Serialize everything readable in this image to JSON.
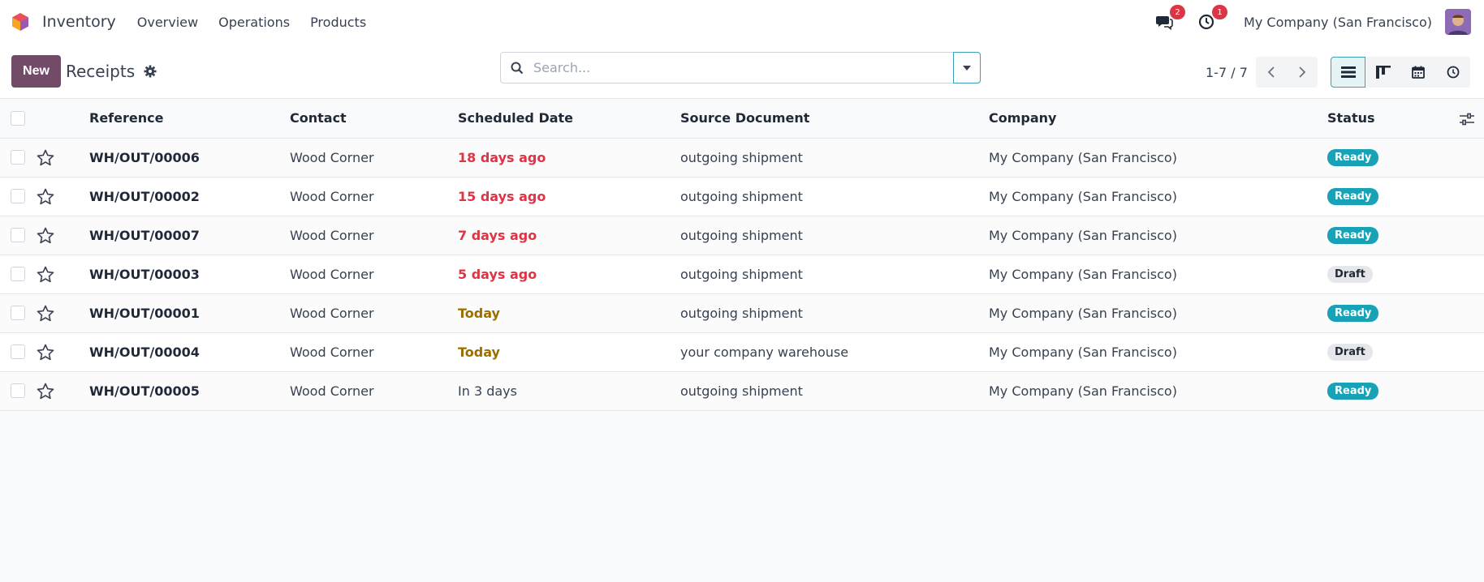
{
  "navbar": {
    "app_name": "Inventory",
    "menu": [
      "Overview",
      "Operations",
      "Products"
    ],
    "messages_count": "2",
    "activities_count": "1",
    "company": "My Company (San Francisco)"
  },
  "control_panel": {
    "new_label": "New",
    "title": "Receipts",
    "search_placeholder": "Search...",
    "pager": "1-7 / 7"
  },
  "table": {
    "headers": {
      "reference": "Reference",
      "contact": "Contact",
      "scheduled_date": "Scheduled Date",
      "source_document": "Source Document",
      "company": "Company",
      "status": "Status"
    },
    "rows": [
      {
        "reference": "WH/OUT/00006",
        "contact": "Wood Corner",
        "date": "18 days ago",
        "date_state": "late",
        "source": "outgoing shipment",
        "company": "My Company (San Francisco)",
        "status": "Ready"
      },
      {
        "reference": "WH/OUT/00002",
        "contact": "Wood Corner",
        "date": "15 days ago",
        "date_state": "late",
        "source": "outgoing shipment",
        "company": "My Company (San Francisco)",
        "status": "Ready"
      },
      {
        "reference": "WH/OUT/00007",
        "contact": "Wood Corner",
        "date": "7 days ago",
        "date_state": "late",
        "source": "outgoing shipment",
        "company": "My Company (San Francisco)",
        "status": "Ready"
      },
      {
        "reference": "WH/OUT/00003",
        "contact": "Wood Corner",
        "date": "5 days ago",
        "date_state": "late",
        "source": "outgoing shipment",
        "company": "My Company (San Francisco)",
        "status": "Draft"
      },
      {
        "reference": "WH/OUT/00001",
        "contact": "Wood Corner",
        "date": "Today",
        "date_state": "today",
        "source": "outgoing shipment",
        "company": "My Company (San Francisco)",
        "status": "Ready"
      },
      {
        "reference": "WH/OUT/00004",
        "contact": "Wood Corner",
        "date": "Today",
        "date_state": "today",
        "source": "your company warehouse",
        "company": "My Company (San Francisco)",
        "status": "Draft"
      },
      {
        "reference": "WH/OUT/00005",
        "contact": "Wood Corner",
        "date": "In 3 days",
        "date_state": "future",
        "source": "outgoing shipment",
        "company": "My Company (San Francisco)",
        "status": "Ready"
      }
    ]
  },
  "colors": {
    "brand": "#714b67",
    "accent": "#17a2b8",
    "late": "#dc3545",
    "today": "#9a6f00"
  }
}
